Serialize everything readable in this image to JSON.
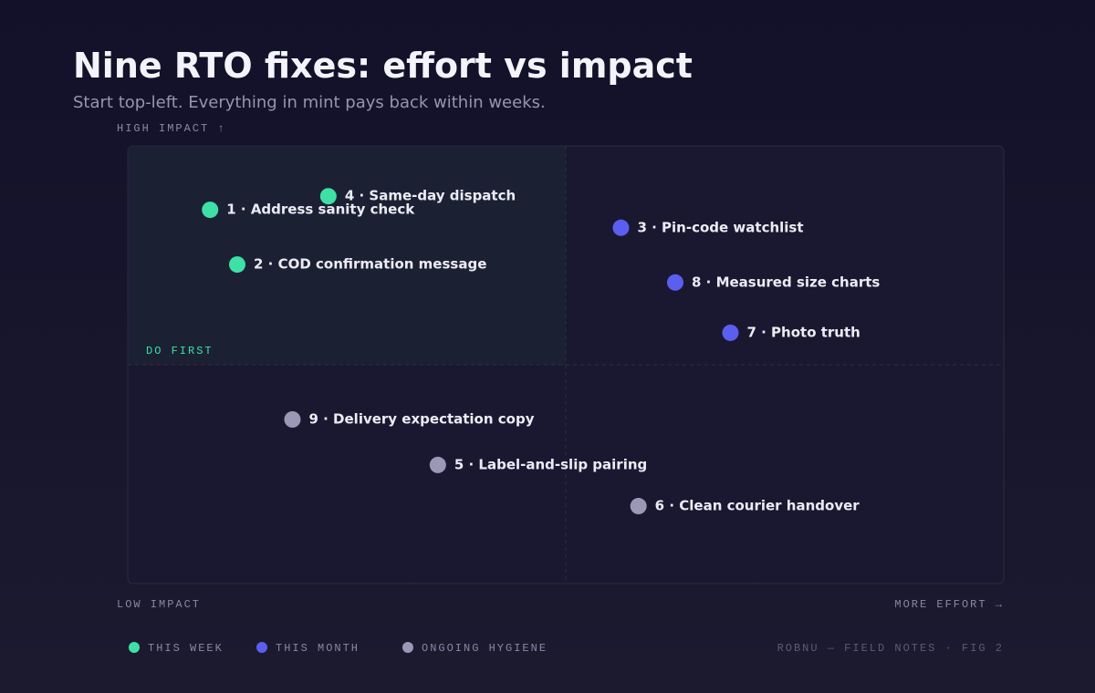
{
  "chart_data": {
    "type": "scatter",
    "title": "Nine RTO fixes: effort vs impact",
    "subtitle": "Start top-left. Everything in mint pays back within weeks.",
    "y_label_top": "HIGH IMPACT ↑",
    "y_label_bottom": "LOW IMPACT",
    "x_label": "MORE EFFORT →",
    "quadrant_label": "DO FIRST",
    "source": "ROBNU — FIELD NOTES · FIG 2",
    "xlim": [
      0,
      100
    ],
    "ylim": [
      0,
      100
    ],
    "series": [
      {
        "name": "THIS WEEK",
        "color": "#3ee0a6",
        "labels": [
          "1 · Address sanity check",
          "4 · Same-day dispatch",
          "2 · COD confirmation message"
        ],
        "x": [
          9.4,
          22.9,
          12.5
        ],
        "y": [
          85.4,
          88.5,
          72.9
        ]
      },
      {
        "name": "THIS MONTH",
        "color": "#5b5ff0",
        "labels": [
          "3 · Pin-code watchlist",
          "8 · Measured size charts",
          "7 · Photo truth"
        ],
        "x": [
          56.3,
          62.5,
          68.8
        ],
        "y": [
          81.3,
          68.8,
          57.3
        ]
      },
      {
        "name": "ONGOING HYGIENE",
        "color": "#9a98b5",
        "labels": [
          "9 · Delivery expectation copy",
          "5 · Label-and-slip pairing",
          "6 · Clean courier handover"
        ],
        "x": [
          18.8,
          35.4,
          58.3
        ],
        "y": [
          37.5,
          27.1,
          17.7
        ]
      }
    ]
  }
}
